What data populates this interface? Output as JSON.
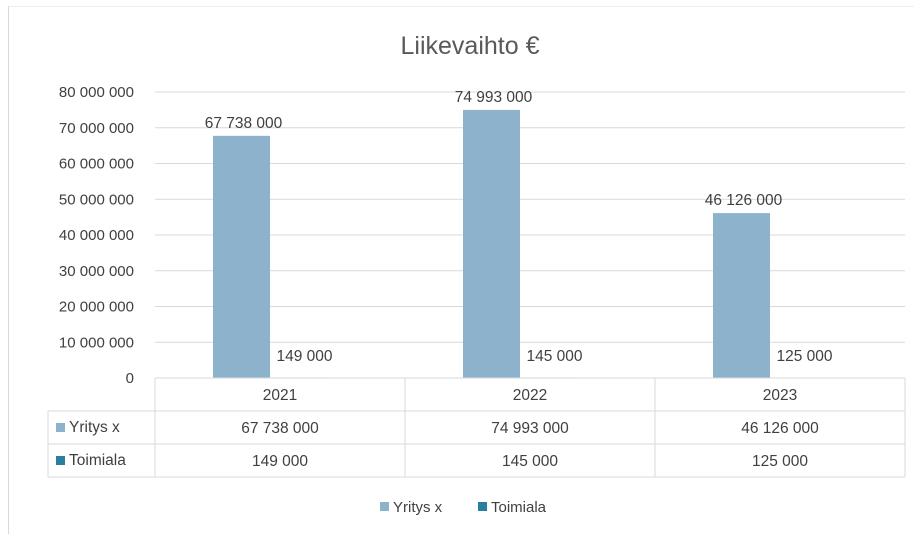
{
  "chart_data": {
    "type": "bar",
    "title": "Liikevaihto €",
    "categories": [
      "2021",
      "2022",
      "2023"
    ],
    "series": [
      {
        "name": "Yritys x",
        "values": [
          67738000,
          74993000,
          46126000
        ],
        "color": "#8db3cc"
      },
      {
        "name": "Toimiala",
        "values": [
          149000,
          145000,
          125000
        ],
        "color": "#2a7f9e"
      }
    ],
    "data_labels": [
      [
        "67 738 000",
        "74 993 000",
        "46 126 000"
      ],
      [
        "149 000",
        "145 000",
        "125 000"
      ]
    ],
    "ylim": [
      0,
      80000000
    ],
    "yticks": [
      0,
      10000000,
      20000000,
      30000000,
      40000000,
      50000000,
      60000000,
      70000000,
      80000000
    ],
    "ytick_labels": [
      "0",
      "10 000 000",
      "20 000 000",
      "30 000 000",
      "40 000 000",
      "50 000 000",
      "60 000 000",
      "70 000 000",
      "80 000 000"
    ],
    "grid": true,
    "data_table": true,
    "legend_position": "bottom",
    "grid_color": "#d9d9d9"
  }
}
